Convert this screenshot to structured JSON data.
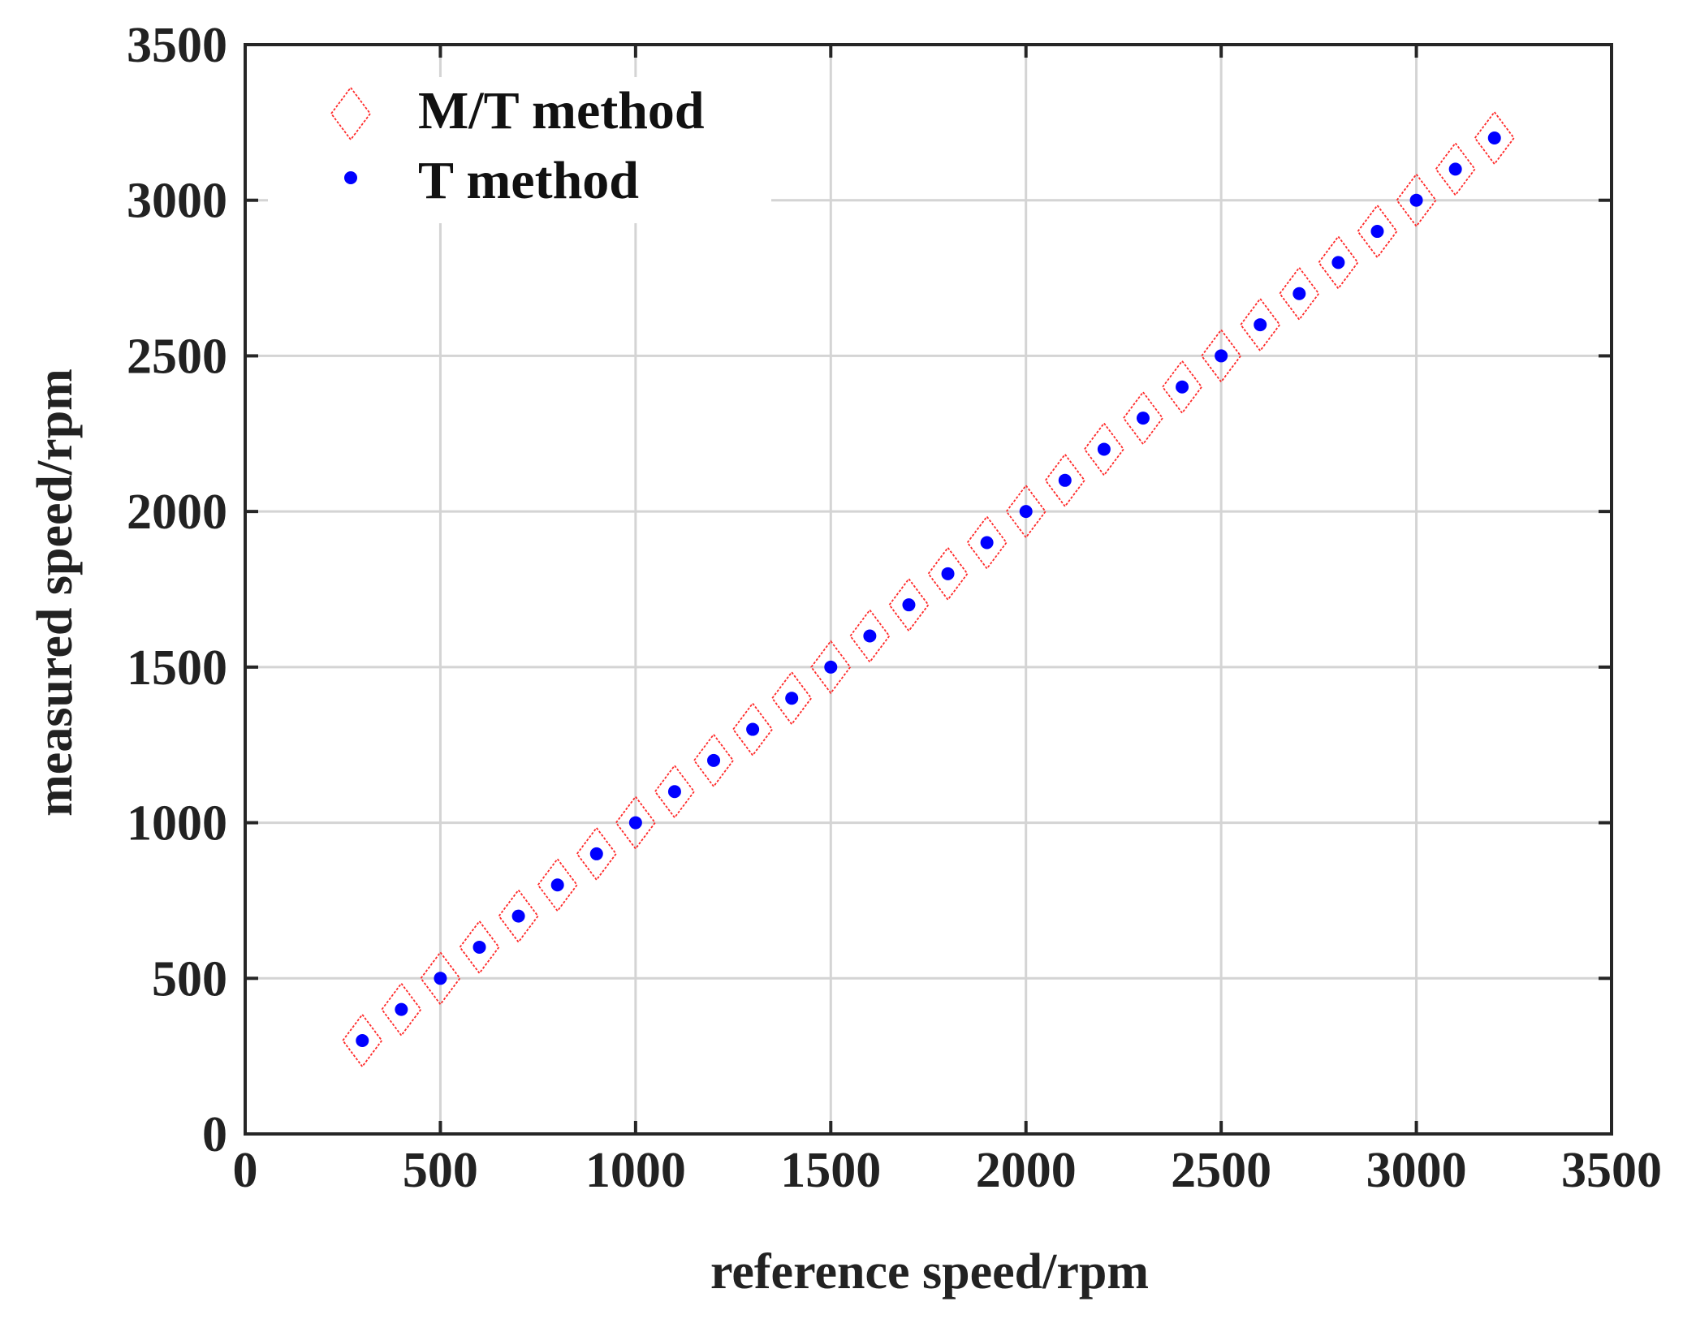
{
  "chart_data": {
    "type": "scatter",
    "title": "",
    "xlabel": "reference speed/rpm",
    "ylabel": "measured speed/rpm",
    "xlim": [
      0,
      3500
    ],
    "ylim": [
      0,
      3500
    ],
    "xticks": [
      0,
      500,
      1000,
      1500,
      2000,
      2500,
      3000,
      3500
    ],
    "yticks": [
      0,
      500,
      1000,
      1500,
      2000,
      2500,
      3000,
      3500
    ],
    "xtick_labels": [
      "0",
      "500",
      "1000",
      "1500",
      "2000",
      "2500",
      "3000",
      "3500"
    ],
    "ytick_labels": [
      "0",
      "500",
      "1000",
      "1500",
      "2000",
      "2500",
      "3000",
      "3500"
    ],
    "grid": true,
    "legend_position": "top-left",
    "series": [
      {
        "name": "M/T method",
        "marker": "diamond-open",
        "color": "#ff2a2a",
        "x": [
          300,
          400,
          500,
          600,
          700,
          800,
          900,
          1000,
          1100,
          1200,
          1300,
          1400,
          1500,
          1600,
          1700,
          1800,
          1900,
          2000,
          2100,
          2200,
          2300,
          2400,
          2500,
          2600,
          2700,
          2800,
          2900,
          3000,
          3100,
          3200
        ],
        "y": [
          300,
          400,
          500,
          600,
          700,
          800,
          900,
          1000,
          1100,
          1200,
          1300,
          1400,
          1500,
          1600,
          1700,
          1800,
          1900,
          2000,
          2100,
          2200,
          2300,
          2400,
          2500,
          2600,
          2700,
          2800,
          2900,
          3000,
          3100,
          3200
        ]
      },
      {
        "name": "T method",
        "marker": "dot",
        "color": "#0000ff",
        "x": [
          300,
          400,
          500,
          600,
          700,
          800,
          900,
          1000,
          1100,
          1200,
          1300,
          1400,
          1500,
          1600,
          1700,
          1800,
          1900,
          2000,
          2100,
          2200,
          2300,
          2400,
          2500,
          2600,
          2700,
          2800,
          2900,
          3000,
          3100,
          3200
        ],
        "y": [
          300,
          400,
          500,
          600,
          700,
          800,
          900,
          1000,
          1100,
          1200,
          1300,
          1400,
          1500,
          1600,
          1700,
          1800,
          1900,
          2000,
          2100,
          2200,
          2300,
          2400,
          2500,
          2600,
          2700,
          2800,
          2900,
          3000,
          3100,
          3200
        ]
      }
    ]
  }
}
